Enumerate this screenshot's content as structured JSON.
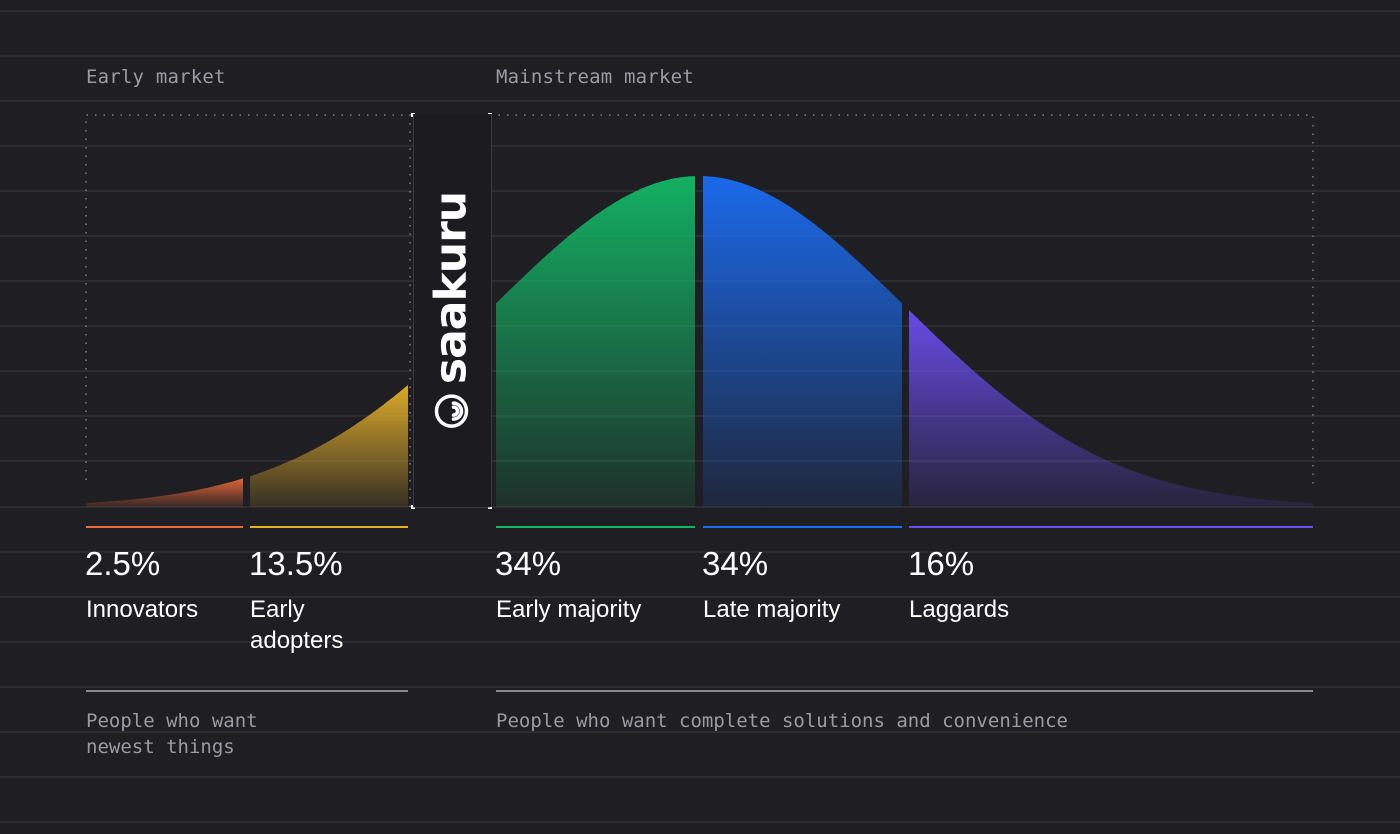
{
  "sections": {
    "early_market_label": "Early market",
    "mainstream_market_label": "Mainstream market"
  },
  "brand": {
    "name": "saakuru",
    "icon": "saakuru-logo-icon"
  },
  "segments": [
    {
      "key": "innovators",
      "percent": "2.5%",
      "name": "Innovators",
      "color": "#e8693a",
      "share": 2.5
    },
    {
      "key": "early_adopters",
      "percent": "13.5%",
      "name": "Early\nadopters",
      "color": "#e6b12a",
      "share": 13.5
    },
    {
      "key": "early_majority",
      "percent": "34%",
      "name": "Early majority",
      "color": "#12b866",
      "share": 34
    },
    {
      "key": "late_majority",
      "percent": "34%",
      "name": "Late majority",
      "color": "#1a6df5",
      "share": 34
    },
    {
      "key": "laggards",
      "percent": "16%",
      "name": "Laggards",
      "color": "#6a4ef0",
      "share": 16
    }
  ],
  "descriptions": {
    "early": "People who want\nnewest things",
    "mainstream": "People who want complete solutions and convenience"
  },
  "colors": {
    "background": "#1f1e23",
    "grid_line": "#3b3a41",
    "dotted_border": "#7d7c84",
    "innovators": "#e8693a",
    "early_adopters": "#e6b12a",
    "early_majority": "#12b866",
    "late_majority": "#1a6df5",
    "laggards": "#6a4ef0"
  }
}
